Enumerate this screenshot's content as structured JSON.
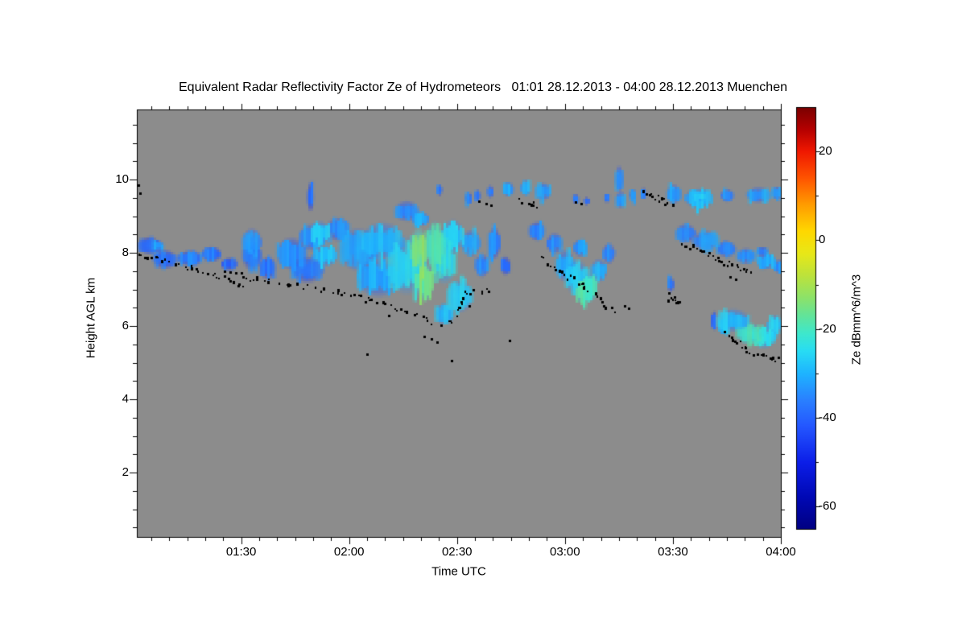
{
  "title": "Equivalent Radar Reflectivity Factor Ze of Hydrometeors   01:01 28.12.2013 - 04:00 28.12.2013 Muenchen",
  "colors": {
    "page_bg": "#ffffff",
    "plot_bg": "#8c8c8c",
    "frame": "#000000",
    "cloud_base_dots": "#000000"
  },
  "chart_data": {
    "type": "heatmap",
    "title": "Equivalent Radar Reflectivity Factor Ze of Hydrometeors   01:01 28.12.2013 - 04:00 28.12.2013 Muenchen",
    "xlabel": "Time UTC",
    "ylabel": "Height AGL km",
    "colorbar_label": "Ze dBmm^6/m^3",
    "station": "Muenchen",
    "time_start": "01:01 28.12.2013",
    "time_end": "04:00 28.12.2013",
    "x_range_minutes_after_0100": [
      1,
      180
    ],
    "x_ticks": [
      {
        "t": 30,
        "label": "01:30"
      },
      {
        "t": 60,
        "label": "02:00"
      },
      {
        "t": 90,
        "label": "02:30"
      },
      {
        "t": 120,
        "label": "03:00"
      },
      {
        "t": 150,
        "label": "03:30"
      },
      {
        "t": 180,
        "label": "04:00"
      }
    ],
    "x_minor_step_min": 5,
    "y_range_km": [
      0.2,
      11.9
    ],
    "y_ticks": [
      2,
      4,
      6,
      8,
      10
    ],
    "y_minor_step_km": 0.5,
    "grid": false,
    "colorbar": {
      "min": -65,
      "max": 30,
      "major_ticks": [
        20,
        0,
        -20,
        -40,
        -60
      ],
      "minor_ticks": [
        10,
        -10,
        -30,
        -50
      ],
      "stops": [
        [
          30,
          "#7a0000"
        ],
        [
          25,
          "#b40000"
        ],
        [
          20,
          "#f01800"
        ],
        [
          14,
          "#ff5400"
        ],
        [
          8,
          "#ff9c00"
        ],
        [
          2,
          "#ffd800"
        ],
        [
          -3,
          "#e8e818"
        ],
        [
          -8,
          "#bce23c"
        ],
        [
          -13,
          "#8ce26a"
        ],
        [
          -17,
          "#62e49a"
        ],
        [
          -21,
          "#3ee8cc"
        ],
        [
          -25,
          "#28dcf4"
        ],
        [
          -30,
          "#1eb4ff"
        ],
        [
          -36,
          "#2a80ff"
        ],
        [
          -42,
          "#2456ff"
        ],
        [
          -50,
          "#0c1ee8"
        ],
        [
          -58,
          "#0008b4"
        ],
        [
          -65,
          "#000082"
        ]
      ]
    },
    "clouds_format": "[t_min_after_0100UTC, height_km, radius_t_min, radius_h_km, Ze_dB]",
    "clouds": [
      [
        4.4,
        8.2,
        3.4,
        0.26,
        -38
      ],
      [
        7.0,
        8.18,
        1.8,
        0.18,
        -31
      ],
      [
        8.8,
        7.82,
        3.6,
        0.29,
        -37
      ],
      [
        15.8,
        7.85,
        3.8,
        0.24,
        -36
      ],
      [
        21.8,
        7.96,
        2.9,
        0.24,
        -37
      ],
      [
        26.7,
        7.69,
        2.5,
        0.2,
        -39
      ],
      [
        33.0,
        7.91,
        2.9,
        0.44,
        -36
      ],
      [
        33.0,
        8.3,
        3.0,
        0.4,
        -33
      ],
      [
        37.3,
        7.58,
        2.5,
        0.33,
        -38
      ],
      [
        44.0,
        7.98,
        4.5,
        0.48,
        -34
      ],
      [
        49.8,
        8.42,
        4.0,
        0.4,
        -33
      ],
      [
        48.4,
        7.54,
        4.9,
        0.4,
        -36
      ],
      [
        52.0,
        8.55,
        3.0,
        0.35,
        -27
      ],
      [
        53.4,
        7.91,
        3.6,
        0.31,
        -29
      ],
      [
        49.3,
        9.52,
        1.1,
        0.44,
        -38
      ],
      [
        56.9,
        8.64,
        3.6,
        0.35,
        -34
      ],
      [
        62.5,
        8.09,
        5.6,
        0.62,
        -32
      ],
      [
        68.1,
        7.32,
        6.3,
        0.57,
        -31
      ],
      [
        69.3,
        8.31,
        6.3,
        0.57,
        -29
      ],
      [
        76.0,
        7.65,
        5.8,
        0.84,
        -25
      ],
      [
        79.3,
        8.09,
        2.5,
        0.66,
        -13
      ],
      [
        80.9,
        7.21,
        2.9,
        0.57,
        -16
      ],
      [
        83.8,
        8.2,
        2.9,
        0.7,
        -19
      ],
      [
        86.5,
        7.76,
        3.6,
        0.66,
        -23
      ],
      [
        88.9,
        8.46,
        3.6,
        0.48,
        -27
      ],
      [
        94.1,
        8.26,
        2.9,
        0.4,
        -31
      ],
      [
        97.2,
        7.65,
        2.2,
        0.35,
        -34
      ],
      [
        90.9,
        6.81,
        4.0,
        0.48,
        -27
      ],
      [
        86.5,
        6.33,
        2.9,
        0.31,
        -29
      ],
      [
        100.6,
        8.26,
        2.0,
        0.48,
        -35
      ],
      [
        103.7,
        7.65,
        1.6,
        0.29,
        -37
      ],
      [
        76.0,
        9.14,
        3.6,
        0.31,
        -33
      ],
      [
        79.8,
        8.92,
        2.7,
        0.22,
        -31
      ],
      [
        85.1,
        9.71,
        0.9,
        0.18,
        -36
      ],
      [
        93.4,
        9.49,
        1.1,
        0.2,
        -35
      ],
      [
        95.9,
        9.56,
        0.9,
        0.18,
        -36
      ],
      [
        99.5,
        9.67,
        1.1,
        0.2,
        -34
      ],
      [
        104.4,
        9.74,
        1.8,
        0.22,
        -32
      ],
      [
        109.3,
        9.78,
        1.6,
        0.24,
        -30
      ],
      [
        114.2,
        9.67,
        2.5,
        0.26,
        -32
      ],
      [
        123.2,
        9.47,
        1.1,
        0.15,
        -35
      ],
      [
        126.3,
        9.41,
        0.9,
        0.13,
        -36
      ],
      [
        131.9,
        9.49,
        0.9,
        0.15,
        -35
      ],
      [
        112.4,
        8.59,
        2.5,
        0.29,
        -35
      ],
      [
        117.3,
        8.26,
        2.5,
        0.31,
        -34
      ],
      [
        120.3,
        7.65,
        2.9,
        0.48,
        -30
      ],
      [
        123.6,
        7.32,
        3.6,
        0.53,
        -26
      ],
      [
        126.6,
        7.03,
        2.9,
        0.4,
        -22
      ],
      [
        125.0,
        6.9,
        2.0,
        0.3,
        -20
      ],
      [
        129.7,
        7.52,
        2.5,
        0.35,
        -29
      ],
      [
        132.4,
        7.98,
        2.0,
        0.31,
        -33
      ],
      [
        124.5,
        8.13,
        2.2,
        0.26,
        -33
      ],
      [
        135.3,
        10.02,
        1.3,
        0.4,
        -33
      ],
      [
        135.7,
        9.45,
        1.6,
        0.26,
        -31
      ],
      [
        139.1,
        9.58,
        1.1,
        0.18,
        -35
      ],
      [
        142.0,
        9.63,
        0.9,
        0.18,
        -36
      ],
      [
        150.5,
        9.6,
        2.2,
        0.29,
        -33
      ],
      [
        157.4,
        9.49,
        4.3,
        0.29,
        -30
      ],
      [
        157.4,
        9.54,
        2.0,
        0.15,
        -26
      ],
      [
        165.3,
        9.56,
        2.0,
        0.2,
        -34
      ],
      [
        174.0,
        9.58,
        3.6,
        0.24,
        -32
      ],
      [
        179.1,
        9.63,
        1.6,
        0.2,
        -33
      ],
      [
        153.8,
        8.53,
        3.1,
        0.29,
        -34
      ],
      [
        159.4,
        8.33,
        4.0,
        0.29,
        -33
      ],
      [
        165.0,
        8.11,
        2.9,
        0.24,
        -35
      ],
      [
        170.6,
        7.91,
        2.9,
        0.24,
        -33
      ],
      [
        176.2,
        7.76,
        2.9,
        0.24,
        -31
      ],
      [
        179.6,
        7.63,
        1.6,
        0.2,
        -33
      ],
      [
        175.1,
        8.04,
        1.8,
        0.15,
        -35
      ],
      [
        149.6,
        7.14,
        1.1,
        0.24,
        -36
      ],
      [
        167.0,
        6.15,
        4.9,
        0.35,
        -28
      ],
      [
        171.5,
        5.8,
        4.0,
        0.31,
        -21
      ],
      [
        175.5,
        5.69,
        3.6,
        0.33,
        -24
      ],
      [
        178.4,
        6.02,
        2.2,
        0.31,
        -27
      ],
      [
        164.3,
        5.98,
        1.6,
        0.24,
        -31
      ],
      [
        161.6,
        6.15,
        0.5,
        0.29,
        -38
      ]
    ],
    "cloud_base_lines_format": "polylines of [t_min, height_km] traced by black dots (ceilometer cloud base)",
    "cloud_base_lines": [
      [
        [
          1.5,
          8.0
        ],
        [
          6,
          7.9
        ],
        [
          10,
          7.75
        ],
        [
          16,
          7.6
        ],
        [
          22,
          7.45
        ],
        [
          27,
          7.25
        ],
        [
          30,
          7.1
        ]
      ],
      [
        [
          30,
          7.3
        ],
        [
          34,
          7.32
        ],
        [
          43,
          7.16
        ],
        [
          57,
          6.95
        ],
        [
          65,
          6.73
        ],
        [
          73,
          6.5
        ],
        [
          80,
          6.26
        ],
        [
          85,
          6.02
        ],
        [
          88,
          6.1
        ],
        [
          90,
          6.45
        ],
        [
          92,
          6.95
        ],
        [
          97,
          7.0
        ],
        [
          101,
          7.05
        ]
      ],
      [
        [
          107,
          9.45
        ],
        [
          110,
          9.35
        ],
        [
          113,
          9.28
        ]
      ],
      [
        [
          113,
          7.9
        ],
        [
          117,
          7.6
        ],
        [
          121,
          7.35
        ],
        [
          125,
          7.1
        ],
        [
          128,
          6.9
        ],
        [
          131,
          6.6
        ],
        [
          133.5,
          6.42
        ]
      ],
      [
        [
          148.2,
          6.82
        ],
        [
          149.5,
          6.74
        ],
        [
          151,
          6.66
        ],
        [
          152.2,
          6.72
        ]
      ],
      [
        [
          152.5,
          8.3
        ],
        [
          155,
          8.2
        ],
        [
          157.5,
          8.05
        ],
        [
          160,
          7.95
        ],
        [
          162.5,
          7.82
        ],
        [
          165,
          7.72
        ],
        [
          167.5,
          7.62
        ],
        [
          170,
          7.55
        ],
        [
          172,
          7.5
        ]
      ],
      [
        [
          164,
          5.85
        ],
        [
          166,
          5.7
        ],
        [
          168,
          5.55
        ],
        [
          170,
          5.4
        ],
        [
          172,
          5.3
        ],
        [
          174.5,
          5.2
        ],
        [
          177,
          5.12
        ],
        [
          179.5,
          5.1
        ]
      ],
      [
        [
          141.5,
          9.75
        ],
        [
          143.5,
          9.6
        ],
        [
          145.5,
          9.5
        ],
        [
          147.5,
          9.42
        ],
        [
          149.5,
          9.38
        ]
      ]
    ],
    "extra_dots": [
      [
        1.5,
        9.85
      ],
      [
        1.8,
        9.62
      ],
      [
        25.5,
        7.5
      ],
      [
        27,
        7.48
      ],
      [
        28.5,
        7.46
      ],
      [
        30,
        7.44
      ],
      [
        65,
        5.22
      ],
      [
        71,
        6.28
      ],
      [
        80.9,
        5.71
      ],
      [
        82.9,
        5.65
      ],
      [
        84.5,
        5.56
      ],
      [
        88.5,
        5.05
      ],
      [
        93.5,
        6.55
      ],
      [
        96,
        9.4
      ],
      [
        98,
        9.33
      ],
      [
        99.5,
        9.3
      ],
      [
        104.6,
        5.6
      ],
      [
        111,
        9.3
      ],
      [
        123,
        9.38
      ],
      [
        124.5,
        9.33
      ],
      [
        136.5,
        6.55
      ],
      [
        137.8,
        6.48
      ],
      [
        166,
        7.35
      ],
      [
        167.5,
        7.28
      ],
      [
        149,
        6.9
      ],
      [
        150.5,
        6.8
      ]
    ]
  }
}
